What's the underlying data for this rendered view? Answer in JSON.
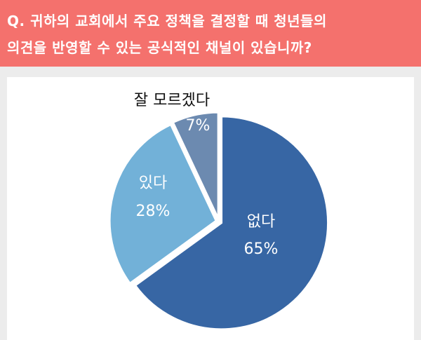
{
  "header": {
    "line1": "Q. 귀하의 교회에서 주요 정책을 결정할 때 청년들의",
    "line2": "의견을 반영할 수 있는 공식적인 채널이 있습니까?"
  },
  "chart_data": {
    "type": "pie",
    "title": "",
    "slices": [
      {
        "label": "없다",
        "value": 65,
        "value_label": "65%",
        "color": "#3766a4"
      },
      {
        "label": "있다",
        "value": 28,
        "value_label": "28%",
        "color": "#72b1d8"
      },
      {
        "label": "잘 모르겠다",
        "value": 7,
        "value_label": "7%",
        "color": "#6c8ab0"
      }
    ],
    "start": "12 o'clock, clockwise",
    "exploded": true
  }
}
